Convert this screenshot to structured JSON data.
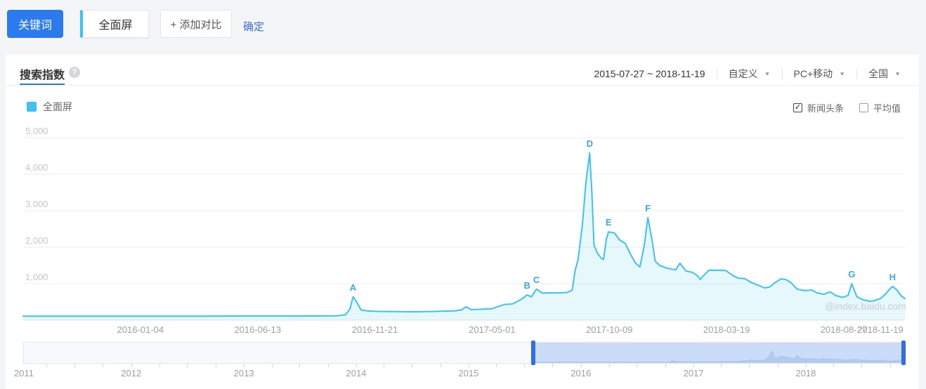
{
  "toolbar": {
    "keyword_label": "关键词",
    "keyword_value": "全面屏",
    "add_compare_label": "+ 添加对比",
    "confirm_label": "确定"
  },
  "panel": {
    "tab": "搜索指数",
    "help_icon": "?",
    "date_range": "2015-07-27 ~ 2018-11-19",
    "filters": [
      {
        "label": "自定义"
      },
      {
        "label": "PC+移动"
      },
      {
        "label": "全国"
      }
    ],
    "legend": {
      "series": "全面屏",
      "color": "#3bc2f2"
    },
    "toggles": [
      {
        "label": "新闻头条",
        "checked": true
      },
      {
        "label": "平均值",
        "checked": false
      }
    ],
    "watermark": "@index.baidu.com"
  },
  "chart_data": {
    "type": "area",
    "series_name": "全面屏",
    "line_color": "#3bc2f2",
    "fill_color": "rgba(59,194,242,0.12)",
    "x_range": [
      "2015-07-27",
      "2018-11-19"
    ],
    "ylim": [
      0,
      5000
    ],
    "y_ticks": [
      1000,
      2000,
      3000,
      4000,
      5000
    ],
    "y_tick_labels": [
      "1,000",
      "2,000",
      "3,000",
      "4,000",
      "5,000"
    ],
    "x_ticks": [
      "2016-01-04",
      "2016-06-13",
      "2016-11-21",
      "2017-05-01",
      "2017-10-09",
      "2018-03-19",
      "2018-08-27",
      "2018-11-19"
    ],
    "grid": true,
    "annotations": [
      {
        "label": "A",
        "date": "2016-10-22",
        "value": 640
      },
      {
        "label": "B",
        "date": "2017-06-18",
        "value": 690
      },
      {
        "label": "C",
        "date": "2017-07-01",
        "value": 850
      },
      {
        "label": "D",
        "date": "2017-09-12",
        "value": 4580
      },
      {
        "label": "E",
        "date": "2017-10-08",
        "value": 2420
      },
      {
        "label": "F",
        "date": "2017-12-01",
        "value": 2810
      },
      {
        "label": "G",
        "date": "2018-09-07",
        "value": 1000
      },
      {
        "label": "H",
        "date": "2018-11-02",
        "value": 923
      }
    ],
    "points": [
      [
        "2015-07-27",
        110
      ],
      [
        "2015-09-20",
        112
      ],
      [
        "2015-11-20",
        110
      ],
      [
        "2016-01-20",
        112
      ],
      [
        "2016-03-20",
        112
      ],
      [
        "2016-05-20",
        113
      ],
      [
        "2016-07-20",
        114
      ],
      [
        "2016-09-05",
        115
      ],
      [
        "2016-09-30",
        120
      ],
      [
        "2016-10-12",
        150
      ],
      [
        "2016-10-18",
        320
      ],
      [
        "2016-10-22",
        640
      ],
      [
        "2016-10-27",
        500
      ],
      [
        "2016-11-02",
        280
      ],
      [
        "2016-11-10",
        255
      ],
      [
        "2016-11-25",
        240
      ],
      [
        "2016-12-20",
        235
      ],
      [
        "2017-01-15",
        230
      ],
      [
        "2017-02-12",
        240
      ],
      [
        "2017-03-10",
        255
      ],
      [
        "2017-03-20",
        280
      ],
      [
        "2017-03-26",
        365
      ],
      [
        "2017-04-02",
        290
      ],
      [
        "2017-04-16",
        300
      ],
      [
        "2017-05-01",
        315
      ],
      [
        "2017-05-18",
        430
      ],
      [
        "2017-05-29",
        445
      ],
      [
        "2017-06-10",
        570
      ],
      [
        "2017-06-18",
        690
      ],
      [
        "2017-06-24",
        640
      ],
      [
        "2017-07-01",
        850
      ],
      [
        "2017-07-09",
        740
      ],
      [
        "2017-07-20",
        750
      ],
      [
        "2017-08-01",
        745
      ],
      [
        "2017-08-12",
        760
      ],
      [
        "2017-08-19",
        820
      ],
      [
        "2017-08-23",
        1360
      ],
      [
        "2017-08-27",
        1650
      ],
      [
        "2017-09-02",
        2600
      ],
      [
        "2017-09-07",
        3800
      ],
      [
        "2017-09-12",
        4580
      ],
      [
        "2017-09-15",
        3500
      ],
      [
        "2017-09-18",
        2050
      ],
      [
        "2017-09-23",
        1820
      ],
      [
        "2017-09-28",
        1700
      ],
      [
        "2017-10-01",
        1660
      ],
      [
        "2017-10-05",
        2220
      ],
      [
        "2017-10-08",
        2420
      ],
      [
        "2017-10-16",
        2390
      ],
      [
        "2017-10-23",
        2200
      ],
      [
        "2017-10-31",
        2100
      ],
      [
        "2017-11-07",
        1810
      ],
      [
        "2017-11-14",
        1560
      ],
      [
        "2017-11-20",
        1460
      ],
      [
        "2017-11-26",
        2050
      ],
      [
        "2017-12-01",
        2810
      ],
      [
        "2017-12-07",
        2150
      ],
      [
        "2017-12-11",
        1620
      ],
      [
        "2017-12-17",
        1500
      ],
      [
        "2017-12-28",
        1420
      ],
      [
        "2018-01-08",
        1380
      ],
      [
        "2018-01-14",
        1560
      ],
      [
        "2018-01-22",
        1350
      ],
      [
        "2018-01-31",
        1310
      ],
      [
        "2018-02-07",
        1220
      ],
      [
        "2018-02-11",
        1115
      ],
      [
        "2018-02-15",
        1210
      ],
      [
        "2018-02-23",
        1370
      ],
      [
        "2018-03-05",
        1365
      ],
      [
        "2018-03-18",
        1360
      ],
      [
        "2018-03-27",
        1230
      ],
      [
        "2018-04-04",
        1150
      ],
      [
        "2018-04-13",
        1140
      ],
      [
        "2018-04-21",
        1040
      ],
      [
        "2018-04-30",
        970
      ],
      [
        "2018-05-10",
        885
      ],
      [
        "2018-05-17",
        905
      ],
      [
        "2018-05-24",
        1020
      ],
      [
        "2018-06-02",
        1135
      ],
      [
        "2018-06-09",
        1110
      ],
      [
        "2018-06-16",
        1020
      ],
      [
        "2018-06-24",
        850
      ],
      [
        "2018-07-04",
        810
      ],
      [
        "2018-07-14",
        825
      ],
      [
        "2018-07-22",
        745
      ],
      [
        "2018-07-31",
        710
      ],
      [
        "2018-08-08",
        775
      ],
      [
        "2018-08-16",
        675
      ],
      [
        "2018-08-26",
        625
      ],
      [
        "2018-09-02",
        680
      ],
      [
        "2018-09-07",
        1000
      ],
      [
        "2018-09-14",
        640
      ],
      [
        "2018-09-22",
        560
      ],
      [
        "2018-10-02",
        515
      ],
      [
        "2018-10-09",
        540
      ],
      [
        "2018-10-17",
        600
      ],
      [
        "2018-10-24",
        730
      ],
      [
        "2018-10-29",
        850
      ],
      [
        "2018-11-02",
        923
      ],
      [
        "2018-11-08",
        830
      ],
      [
        "2018-11-14",
        665
      ],
      [
        "2018-11-19",
        590
      ]
    ]
  },
  "navigator": {
    "years": [
      "2011",
      "2012",
      "2013",
      "2014",
      "2015",
      "2016",
      "2017",
      "2018"
    ],
    "selected_range": {
      "start": "2015-07-27",
      "end": "2018-11-19"
    },
    "selection_color": "#cadcf8",
    "handle_color": "#2e6fe3"
  }
}
